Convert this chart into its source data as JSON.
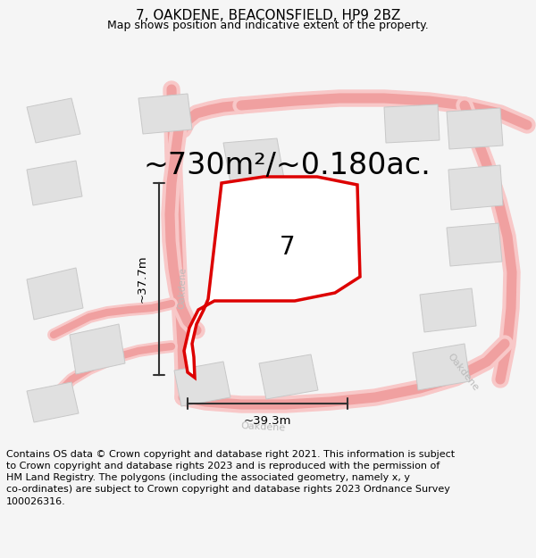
{
  "title": "7, OAKDENE, BEACONSFIELD, HP9 2BZ",
  "subtitle": "Map shows position and indicative extent of the property.",
  "area_text": "~730m²/~0.180ac.",
  "dim_width": "~39.3m",
  "dim_height": "~37.7m",
  "label_number": "7",
  "footer_line1": "Contains OS data © Crown copyright and database right 2021. This information is subject",
  "footer_line2": "to Crown copyright and database rights 2023 and is reproduced with the permission of",
  "footer_line3": "HM Land Registry. The polygons (including the associated geometry, namely x, y",
  "footer_line4": "co-ordinates) are subject to Crown copyright and database rights 2023 Ordnance Survey",
  "footer_line5": "100026316.",
  "bg_color": "#f5f5f5",
  "map_bg": "#ffffff",
  "road_color": "#f0a0a0",
  "road_color2": "#f8c8c8",
  "property_color": "#dd0000",
  "property_fill": "#ffffff",
  "building_color": "#e0e0e0",
  "building_edge": "#c8c8c8",
  "dim_line_color": "#333333",
  "road_label_color": "#bbbbbb",
  "title_fontsize": 11,
  "subtitle_fontsize": 9,
  "area_fontsize": 24,
  "label_fontsize": 20,
  "footer_fontsize": 8.0
}
